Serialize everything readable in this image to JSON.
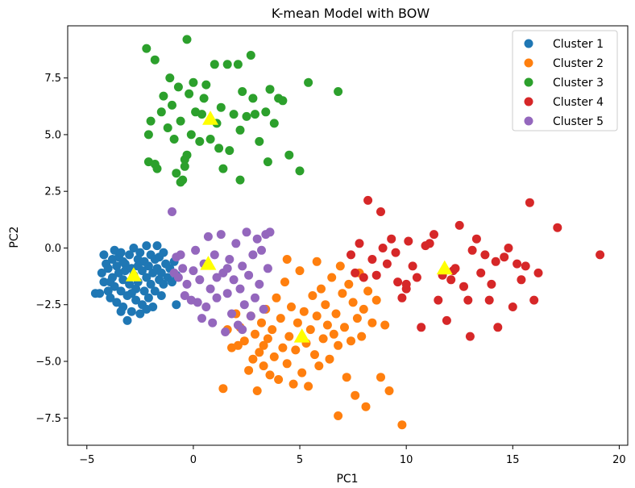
{
  "chart_data": {
    "type": "scatter",
    "title": "K-mean Model with BOW",
    "xlabel": "PC1",
    "ylabel": "PC2",
    "xlim": [
      -5.9,
      20.4
    ],
    "ylim": [
      -8.7,
      9.8
    ],
    "xticks": [
      -5,
      0,
      5,
      10,
      15,
      20
    ],
    "yticks": [
      -7.5,
      -5.0,
      -2.5,
      0.0,
      2.5,
      5.0,
      7.5
    ],
    "xtick_labels": [
      "−5",
      "0",
      "5",
      "10",
      "15",
      "20"
    ],
    "ytick_labels": [
      "−7.5",
      "−5.0",
      "−2.5",
      "0.0",
      "2.5",
      "5.0",
      "7.5"
    ],
    "grid": false,
    "legend_position": "top-right",
    "centroid_color": "#ffff00",
    "series": [
      {
        "name": "Cluster 1",
        "color": "#1f77b4",
        "points": [
          [
            -4.6,
            -2.0
          ],
          [
            -4.4,
            -2.0
          ],
          [
            -4.3,
            -1.1
          ],
          [
            -4.2,
            -0.3
          ],
          [
            -4.2,
            -1.5
          ],
          [
            -4.1,
            -0.7
          ],
          [
            -4.0,
            -1.9
          ],
          [
            -4.0,
            -0.9
          ],
          [
            -3.9,
            -2.2
          ],
          [
            -3.8,
            -0.5
          ],
          [
            -3.8,
            -1.3
          ],
          [
            -3.7,
            -0.1
          ],
          [
            -3.7,
            -1.7
          ],
          [
            -3.6,
            -0.8
          ],
          [
            -3.6,
            -2.4
          ],
          [
            -3.5,
            -1.1
          ],
          [
            -3.5,
            -0.4
          ],
          [
            -3.4,
            -1.9
          ],
          [
            -3.4,
            -0.2
          ],
          [
            -3.3,
            -1.4
          ],
          [
            -3.3,
            -2.6
          ],
          [
            -3.2,
            -0.7
          ],
          [
            -3.2,
            -1.0
          ],
          [
            -3.1,
            -3.2
          ],
          [
            -3.1,
            -2.1
          ],
          [
            -3.0,
            -0.3
          ],
          [
            -3.0,
            -1.6
          ],
          [
            -2.9,
            -0.9
          ],
          [
            -2.9,
            -2.8
          ],
          [
            -2.8,
            -1.2
          ],
          [
            -2.8,
            0.0
          ],
          [
            -2.7,
            -2.3
          ],
          [
            -2.7,
            -1.8
          ],
          [
            -2.6,
            -0.5
          ],
          [
            -2.6,
            -1.5
          ],
          [
            -2.5,
            -2.9
          ],
          [
            -2.5,
            -0.2
          ],
          [
            -2.4,
            -1.0
          ],
          [
            -2.4,
            -2.5
          ],
          [
            -2.3,
            -0.6
          ],
          [
            -2.3,
            -1.9
          ],
          [
            -2.2,
            0.1
          ],
          [
            -2.2,
            -1.3
          ],
          [
            -2.1,
            -2.2
          ],
          [
            -2.1,
            -0.8
          ],
          [
            -2.0,
            -1.6
          ],
          [
            -2.0,
            -0.3
          ],
          [
            -1.9,
            -2.6
          ],
          [
            -1.9,
            -1.1
          ],
          [
            -1.8,
            -0.5
          ],
          [
            -1.8,
            -1.9
          ],
          [
            -1.7,
            -0.9
          ],
          [
            -1.7,
            0.1
          ],
          [
            -1.6,
            -1.4
          ],
          [
            -1.6,
            -0.4
          ],
          [
            -1.5,
            -1.1
          ],
          [
            -1.4,
            -0.2
          ],
          [
            -1.4,
            -1.6
          ],
          [
            -1.3,
            -0.7
          ],
          [
            -1.2,
            -1.3
          ],
          [
            -1.1,
            -0.9
          ],
          [
            -1.0,
            -1.5
          ],
          [
            -0.9,
            -0.6
          ],
          [
            -0.8,
            -1.2
          ],
          [
            -0.8,
            -2.5
          ],
          [
            -3.9,
            -1.5
          ],
          [
            -3.4,
            -2.8
          ],
          [
            -2.9,
            -2.0
          ],
          [
            -2.6,
            -0.8
          ],
          [
            -3.3,
            -0.6
          ],
          [
            -2.2,
            -2.7
          ],
          [
            -1.5,
            -2.1
          ]
        ]
      },
      {
        "name": "Cluster 2",
        "color": "#ff7f0e",
        "points": [
          [
            1.4,
            -6.2
          ],
          [
            1.6,
            -3.6
          ],
          [
            1.8,
            -4.4
          ],
          [
            2.0,
            -2.9
          ],
          [
            2.1,
            -4.3
          ],
          [
            2.2,
            -3.5
          ],
          [
            2.4,
            -4.1
          ],
          [
            2.6,
            -5.4
          ],
          [
            2.7,
            -3.0
          ],
          [
            2.8,
            -4.9
          ],
          [
            2.9,
            -3.8
          ],
          [
            3.0,
            -6.3
          ],
          [
            3.1,
            -4.6
          ],
          [
            3.2,
            -3.3
          ],
          [
            3.3,
            -5.2
          ],
          [
            3.4,
            -2.7
          ],
          [
            3.5,
            -4.0
          ],
          [
            3.6,
            -5.6
          ],
          [
            3.7,
            -3.6
          ],
          [
            3.8,
            -4.8
          ],
          [
            3.9,
            -2.2
          ],
          [
            4.0,
            -5.8
          ],
          [
            4.1,
            -3.1
          ],
          [
            4.2,
            -4.4
          ],
          [
            4.3,
            -1.5
          ],
          [
            4.4,
            -5.1
          ],
          [
            4.5,
            -3.9
          ],
          [
            4.6,
            -2.6
          ],
          [
            4.7,
            -6.0
          ],
          [
            4.8,
            -4.5
          ],
          [
            4.9,
            -3.3
          ],
          [
            5.0,
            -1.0
          ],
          [
            5.1,
            -5.5
          ],
          [
            5.2,
            -2.8
          ],
          [
            5.3,
            -4.2
          ],
          [
            5.4,
            -6.1
          ],
          [
            5.5,
            -3.6
          ],
          [
            5.6,
            -2.1
          ],
          [
            5.7,
            -4.7
          ],
          [
            5.8,
            -3.0
          ],
          [
            5.9,
            -5.2
          ],
          [
            6.0,
            -1.8
          ],
          [
            6.1,
            -4.0
          ],
          [
            6.2,
            -2.5
          ],
          [
            6.3,
            -3.4
          ],
          [
            6.4,
            -4.9
          ],
          [
            6.5,
            -1.3
          ],
          [
            6.6,
            -3.8
          ],
          [
            6.7,
            -2.9
          ],
          [
            6.8,
            -4.3
          ],
          [
            6.9,
            -0.8
          ],
          [
            7.0,
            -2.0
          ],
          [
            7.1,
            -3.5
          ],
          [
            7.2,
            -5.7
          ],
          [
            7.3,
            -1.6
          ],
          [
            7.4,
            -4.1
          ],
          [
            7.5,
            -2.4
          ],
          [
            7.6,
            -6.5
          ],
          [
            7.7,
            -3.1
          ],
          [
            7.8,
            -1.1
          ],
          [
            7.9,
            -3.9
          ],
          [
            8.0,
            -2.7
          ],
          [
            8.1,
            -7.0
          ],
          [
            8.2,
            -1.9
          ],
          [
            8.4,
            -3.3
          ],
          [
            8.6,
            -2.3
          ],
          [
            8.8,
            -5.7
          ],
          [
            9.0,
            -3.4
          ],
          [
            9.2,
            -6.3
          ],
          [
            9.8,
            -7.8
          ],
          [
            6.8,
            -7.4
          ],
          [
            5.8,
            -0.6
          ],
          [
            4.4,
            -0.5
          ],
          [
            3.3,
            -4.3
          ]
        ]
      },
      {
        "name": "Cluster 3",
        "color": "#2ca02c",
        "points": [
          [
            -2.2,
            8.8
          ],
          [
            -1.8,
            8.3
          ],
          [
            -2.1,
            5.0
          ],
          [
            -2.0,
            5.6
          ],
          [
            -2.1,
            3.8
          ],
          [
            -1.8,
            3.7
          ],
          [
            -1.7,
            3.5
          ],
          [
            -1.5,
            6.0
          ],
          [
            -1.4,
            6.7
          ],
          [
            -1.2,
            5.3
          ],
          [
            -1.1,
            7.5
          ],
          [
            -1.0,
            6.3
          ],
          [
            -0.9,
            4.8
          ],
          [
            -0.8,
            3.3
          ],
          [
            -0.7,
            7.1
          ],
          [
            -0.6,
            5.6
          ],
          [
            -0.5,
            3.0
          ],
          [
            -0.4,
            3.6
          ],
          [
            -0.3,
            4.1
          ],
          [
            -0.2,
            6.8
          ],
          [
            -0.1,
            5.0
          ],
          [
            0.0,
            7.3
          ],
          [
            0.1,
            6.0
          ],
          [
            0.3,
            4.7
          ],
          [
            0.5,
            6.6
          ],
          [
            0.6,
            7.2
          ],
          [
            0.8,
            4.8
          ],
          [
            1.0,
            8.1
          ],
          [
            1.1,
            5.5
          ],
          [
            1.3,
            6.2
          ],
          [
            1.4,
            3.5
          ],
          [
            1.6,
            8.1
          ],
          [
            1.7,
            4.3
          ],
          [
            1.9,
            5.9
          ],
          [
            2.1,
            8.1
          ],
          [
            2.2,
            5.2
          ],
          [
            2.3,
            6.9
          ],
          [
            2.7,
            8.5
          ],
          [
            2.8,
            6.6
          ],
          [
            2.9,
            5.9
          ],
          [
            3.1,
            4.7
          ],
          [
            3.4,
            6.0
          ],
          [
            3.6,
            7.0
          ],
          [
            3.8,
            5.5
          ],
          [
            4.2,
            6.5
          ],
          [
            4.5,
            4.1
          ],
          [
            5.0,
            3.4
          ],
          [
            5.4,
            7.3
          ],
          [
            6.8,
            6.9
          ],
          [
            -0.3,
            9.2
          ],
          [
            -0.4,
            3.9
          ],
          [
            0.4,
            5.9
          ],
          [
            2.2,
            3.0
          ],
          [
            4.0,
            6.6
          ],
          [
            3.5,
            3.8
          ],
          [
            -0.6,
            2.9
          ],
          [
            1.2,
            4.4
          ],
          [
            2.5,
            5.8
          ]
        ]
      },
      {
        "name": "Cluster 4",
        "color": "#d62728",
        "points": [
          [
            7.4,
            -0.3
          ],
          [
            7.6,
            -1.1
          ],
          [
            7.8,
            0.2
          ],
          [
            8.0,
            -1.3
          ],
          [
            8.2,
            2.1
          ],
          [
            8.4,
            -0.5
          ],
          [
            8.6,
            -1.2
          ],
          [
            8.8,
            1.6
          ],
          [
            8.9,
            0.0
          ],
          [
            9.1,
            -0.7
          ],
          [
            9.3,
            0.4
          ],
          [
            9.5,
            -0.2
          ],
          [
            9.6,
            -1.5
          ],
          [
            9.8,
            -2.2
          ],
          [
            10.0,
            -1.8
          ],
          [
            10.1,
            0.3
          ],
          [
            10.3,
            -0.8
          ],
          [
            10.5,
            -1.3
          ],
          [
            10.7,
            -3.5
          ],
          [
            10.9,
            0.1
          ],
          [
            11.1,
            0.2
          ],
          [
            11.3,
            0.6
          ],
          [
            11.5,
            -2.3
          ],
          [
            11.7,
            -1.2
          ],
          [
            11.9,
            -3.2
          ],
          [
            12.1,
            -1.4
          ],
          [
            12.3,
            -0.9
          ],
          [
            12.5,
            1.0
          ],
          [
            12.7,
            -1.7
          ],
          [
            12.9,
            -2.3
          ],
          [
            13.1,
            -0.1
          ],
          [
            13.3,
            0.4
          ],
          [
            13.5,
            -1.1
          ],
          [
            13.7,
            -0.3
          ],
          [
            13.9,
            -2.3
          ],
          [
            14.0,
            -1.6
          ],
          [
            14.2,
            -0.6
          ],
          [
            14.3,
            -3.5
          ],
          [
            14.6,
            -0.4
          ],
          [
            14.8,
            0.0
          ],
          [
            15.0,
            -2.6
          ],
          [
            15.2,
            -0.7
          ],
          [
            15.4,
            -1.4
          ],
          [
            15.6,
            -0.8
          ],
          [
            15.8,
            2.0
          ],
          [
            16.0,
            -2.3
          ],
          [
            16.2,
            -1.1
          ],
          [
            17.1,
            0.9
          ],
          [
            19.1,
            -0.3
          ],
          [
            10.0,
            -1.6
          ],
          [
            13.0,
            -3.9
          ],
          [
            12.2,
            -1.0
          ]
        ]
      },
      {
        "name": "Cluster 5",
        "color": "#9467bd",
        "points": [
          [
            -1.0,
            1.6
          ],
          [
            -0.9,
            -1.1
          ],
          [
            -0.8,
            -0.4
          ],
          [
            -0.7,
            -1.3
          ],
          [
            -0.6,
            -0.3
          ],
          [
            -0.5,
            -0.9
          ],
          [
            -0.4,
            -2.1
          ],
          [
            -0.3,
            -1.6
          ],
          [
            -0.1,
            -2.3
          ],
          [
            0.0,
            -1.0
          ],
          [
            0.1,
            -0.1
          ],
          [
            0.3,
            -1.4
          ],
          [
            0.4,
            -3.1
          ],
          [
            0.5,
            -0.7
          ],
          [
            0.6,
            -2.6
          ],
          [
            0.7,
            0.5
          ],
          [
            0.8,
            -1.8
          ],
          [
            0.9,
            -3.3
          ],
          [
            1.0,
            -0.3
          ],
          [
            1.1,
            -2.2
          ],
          [
            1.3,
            0.6
          ],
          [
            1.4,
            -1.1
          ],
          [
            1.5,
            -3.7
          ],
          [
            1.6,
            -2.0
          ],
          [
            1.7,
            -0.5
          ],
          [
            1.8,
            -2.9
          ],
          [
            1.9,
            -1.4
          ],
          [
            2.0,
            0.2
          ],
          [
            2.1,
            -3.4
          ],
          [
            2.2,
            -1.8
          ],
          [
            2.3,
            -0.8
          ],
          [
            2.4,
            -2.5
          ],
          [
            2.5,
            0.7
          ],
          [
            2.6,
            -1.2
          ],
          [
            2.7,
            -3.0
          ],
          [
            2.8,
            -0.3
          ],
          [
            2.9,
            -2.2
          ],
          [
            3.0,
            0.4
          ],
          [
            3.1,
            -1.6
          ],
          [
            3.2,
            -0.1
          ],
          [
            3.3,
            -2.7
          ],
          [
            3.4,
            0.6
          ],
          [
            3.5,
            -0.9
          ],
          [
            3.6,
            0.7
          ],
          [
            2.3,
            -3.6
          ],
          [
            1.1,
            -1.3
          ],
          [
            0.2,
            -2.4
          ],
          [
            1.6,
            -0.9
          ]
        ]
      }
    ],
    "centroids": [
      {
        "cluster": "Cluster 1",
        "x": -2.8,
        "y": -1.2
      },
      {
        "cluster": "Cluster 2",
        "x": 5.1,
        "y": -3.9
      },
      {
        "cluster": "Cluster 3",
        "x": 0.8,
        "y": 5.7
      },
      {
        "cluster": "Cluster 4",
        "x": 11.8,
        "y": -0.9
      },
      {
        "cluster": "Cluster 5",
        "x": 0.7,
        "y": -0.7
      }
    ]
  }
}
